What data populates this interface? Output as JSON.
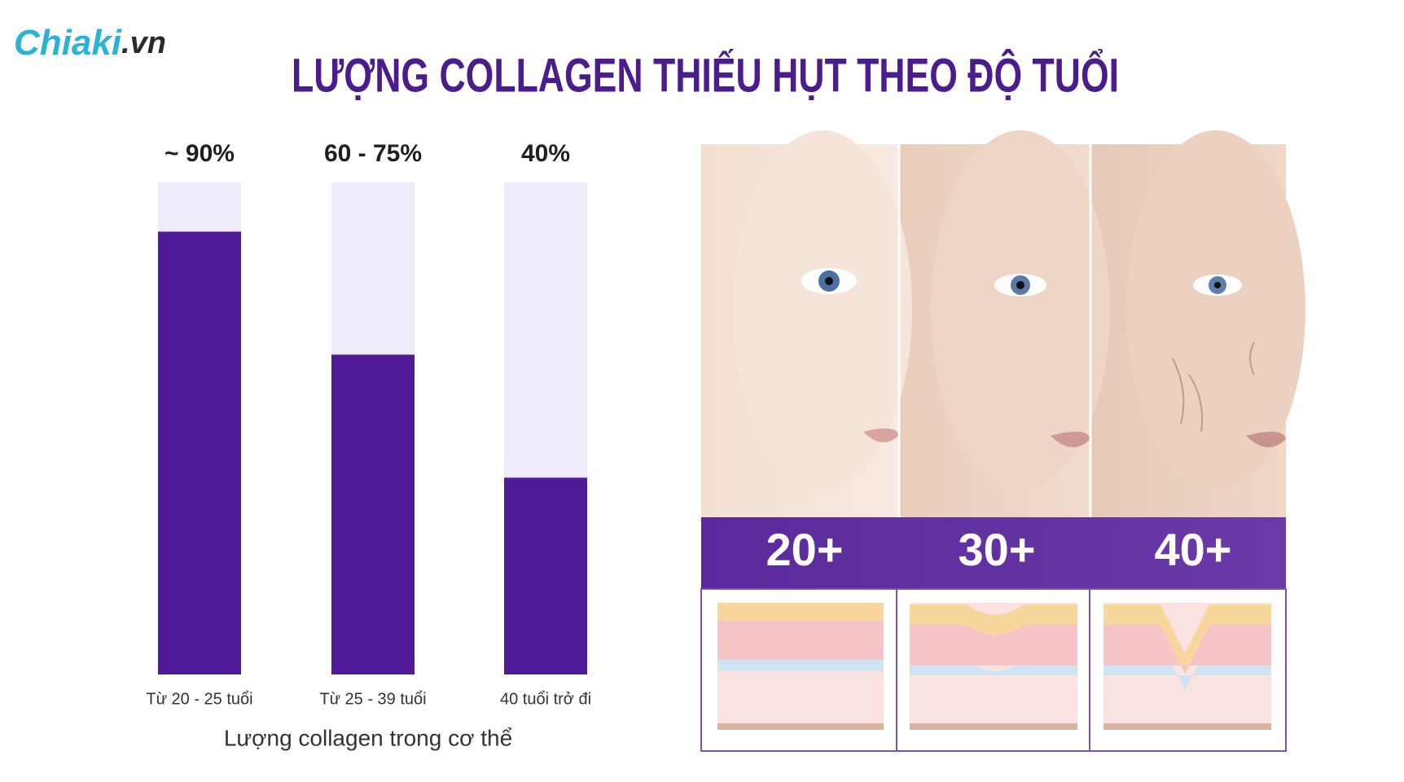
{
  "logo": {
    "name": "Chiaki",
    "suffix": ".vn"
  },
  "chart_data": {
    "type": "bar",
    "title": "LƯỢNG COLLAGEN THIẾU HỤT THEO ĐỘ TUỔI",
    "categories": [
      "Từ 20 - 25 tuổi",
      "Từ 25 - 39 tuổi",
      "40 tuổi trở đi"
    ],
    "values": [
      90,
      65,
      40
    ],
    "value_labels": [
      "~ 90%",
      "60 - 75%",
      "40%"
    ],
    "color": "#4f1a96",
    "track_color": "#efebfa",
    "x_label": "Lượng collagen trong cơ thể",
    "ylim": [
      0,
      100
    ]
  },
  "panels": [
    "20+",
    "30+",
    "40+"
  ]
}
